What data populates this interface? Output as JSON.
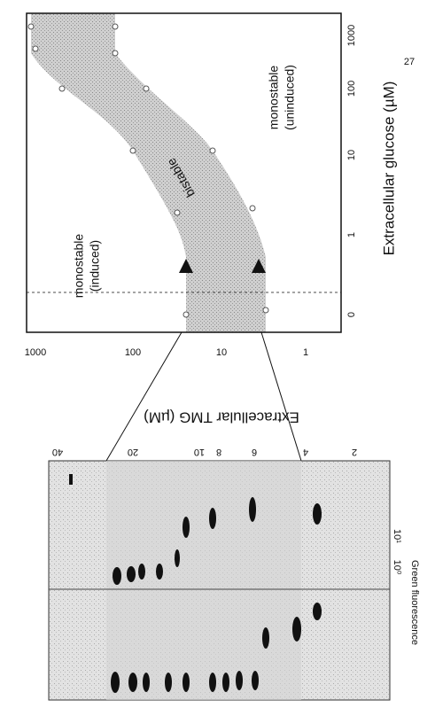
{
  "page_number": "27",
  "phase_diagram": {
    "x_axis_label": "Extracellular glucose (µM)",
    "x_ticks": [
      "0",
      "1",
      "10",
      "100",
      "1000"
    ],
    "y_axis_label": "Extracellular TMG (µM)",
    "y_ticks": [
      "1000",
      "100",
      "10",
      "1"
    ],
    "regions": {
      "induced": [
        "monostable",
        "(induced)"
      ],
      "bistable": "bistable",
      "uninduced": [
        "monostable",
        "(uninduced)"
      ]
    }
  },
  "flow_panel": {
    "tmg_levels": [
      "40",
      "20",
      "10",
      "8",
      "6",
      "4",
      "2"
    ],
    "x_ticks": [
      "10⁰",
      "10¹"
    ],
    "x_axis_label": "Green fluorescence"
  }
}
